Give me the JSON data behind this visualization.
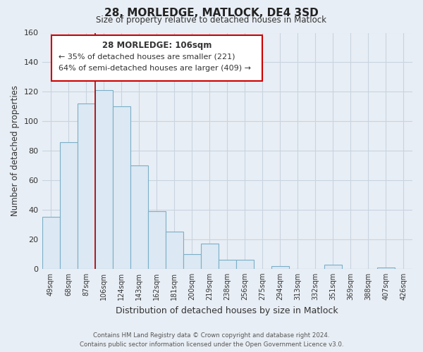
{
  "title": "28, MORLEDGE, MATLOCK, DE4 3SD",
  "subtitle": "Size of property relative to detached houses in Matlock",
  "xlabel": "Distribution of detached houses by size in Matlock",
  "ylabel": "Number of detached properties",
  "bar_labels": [
    "49sqm",
    "68sqm",
    "87sqm",
    "106sqm",
    "124sqm",
    "143sqm",
    "162sqm",
    "181sqm",
    "200sqm",
    "219sqm",
    "238sqm",
    "256sqm",
    "275sqm",
    "294sqm",
    "313sqm",
    "332sqm",
    "351sqm",
    "369sqm",
    "388sqm",
    "407sqm",
    "426sqm"
  ],
  "bar_values": [
    35,
    86,
    112,
    121,
    110,
    70,
    39,
    25,
    10,
    17,
    6,
    6,
    0,
    2,
    0,
    0,
    3,
    0,
    0,
    1,
    0
  ],
  "bar_color": "#dce8f3",
  "bar_edge_color": "#7aafc8",
  "marker_index": 3,
  "marker_line_color": "#aa0000",
  "ylim": [
    0,
    160
  ],
  "yticks": [
    0,
    20,
    40,
    60,
    80,
    100,
    120,
    140,
    160
  ],
  "annotation_title": "28 MORLEDGE: 106sqm",
  "annotation_line1": "← 35% of detached houses are smaller (221)",
  "annotation_line2": "64% of semi-detached houses are larger (409) →",
  "annotation_box_color": "#ffffff",
  "annotation_box_edge": "#cc0000",
  "footer_line1": "Contains HM Land Registry data © Crown copyright and database right 2024.",
  "footer_line2": "Contains public sector information licensed under the Open Government Licence v3.0.",
  "bg_color": "#e8eef5",
  "plot_bg_color": "#e8eef5",
  "grid_color": "#c8d4e0"
}
